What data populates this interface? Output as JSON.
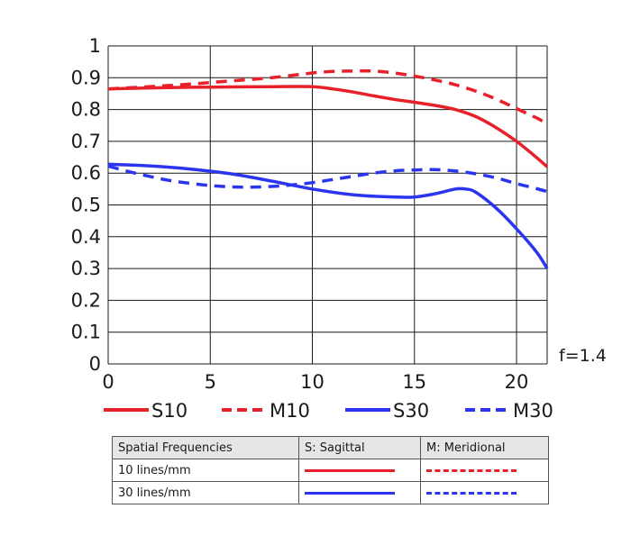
{
  "chart_data": {
    "type": "line",
    "title": "",
    "xlabel": "",
    "ylabel": "",
    "xlim": [
      0,
      21.5
    ],
    "ylim": [
      0,
      1
    ],
    "x_ticks": [
      "0",
      "5",
      "10",
      "15",
      "20"
    ],
    "y_ticks": [
      "0",
      "0.1",
      "0.2",
      "0.3",
      "0.4",
      "0.5",
      "0.6",
      "0.7",
      "0.8",
      "0.9",
      "1"
    ],
    "grid": true,
    "annotation": "f=1.4",
    "colors": {
      "red": "#e8202a",
      "blue": "#2b35f0"
    },
    "series": [
      {
        "name": "S10",
        "color": "#e8202a",
        "dash": false,
        "x": [
          0,
          2,
          4,
          6,
          8,
          10,
          11,
          12,
          13,
          14,
          15,
          16,
          17,
          18,
          19,
          20,
          21,
          21.5
        ],
        "y": [
          0.865,
          0.868,
          0.87,
          0.871,
          0.872,
          0.872,
          0.865,
          0.855,
          0.843,
          0.832,
          0.823,
          0.813,
          0.8,
          0.778,
          0.743,
          0.7,
          0.648,
          0.62
        ]
      },
      {
        "name": "M10",
        "color": "#e8202a",
        "dash": true,
        "x": [
          0,
          2,
          4,
          6,
          8,
          10,
          11,
          12,
          13,
          14,
          15,
          16,
          17,
          18,
          19,
          20,
          21,
          21.5
        ],
        "y": [
          0.865,
          0.872,
          0.88,
          0.89,
          0.9,
          0.915,
          0.92,
          0.921,
          0.921,
          0.915,
          0.905,
          0.893,
          0.878,
          0.858,
          0.833,
          0.803,
          0.773,
          0.755
        ]
      },
      {
        "name": "S30",
        "color": "#2b35f0",
        "dash": false,
        "x": [
          0,
          2,
          4,
          6,
          8,
          10,
          12,
          14,
          15,
          16,
          17,
          17.5,
          18,
          19,
          20,
          21,
          21.5
        ],
        "y": [
          0.628,
          0.623,
          0.613,
          0.598,
          0.575,
          0.55,
          0.532,
          0.525,
          0.525,
          0.535,
          0.55,
          0.55,
          0.54,
          0.49,
          0.425,
          0.35,
          0.3
        ]
      },
      {
        "name": "M30",
        "color": "#2b35f0",
        "dash": true,
        "x": [
          0,
          1,
          2,
          3,
          4,
          5,
          6,
          7,
          8,
          9,
          10,
          11,
          12,
          13,
          14,
          15,
          16,
          17,
          18,
          19,
          20,
          21,
          21.5
        ],
        "y": [
          0.622,
          0.605,
          0.59,
          0.577,
          0.568,
          0.561,
          0.557,
          0.556,
          0.558,
          0.563,
          0.57,
          0.58,
          0.59,
          0.6,
          0.607,
          0.61,
          0.611,
          0.607,
          0.598,
          0.585,
          0.567,
          0.551,
          0.542
        ]
      }
    ]
  },
  "table": {
    "headers": [
      "Spatial Frequencies",
      "S: Sagittal",
      "M: Meridional"
    ],
    "rows": [
      "10 lines/mm",
      "30 lines/mm"
    ]
  }
}
